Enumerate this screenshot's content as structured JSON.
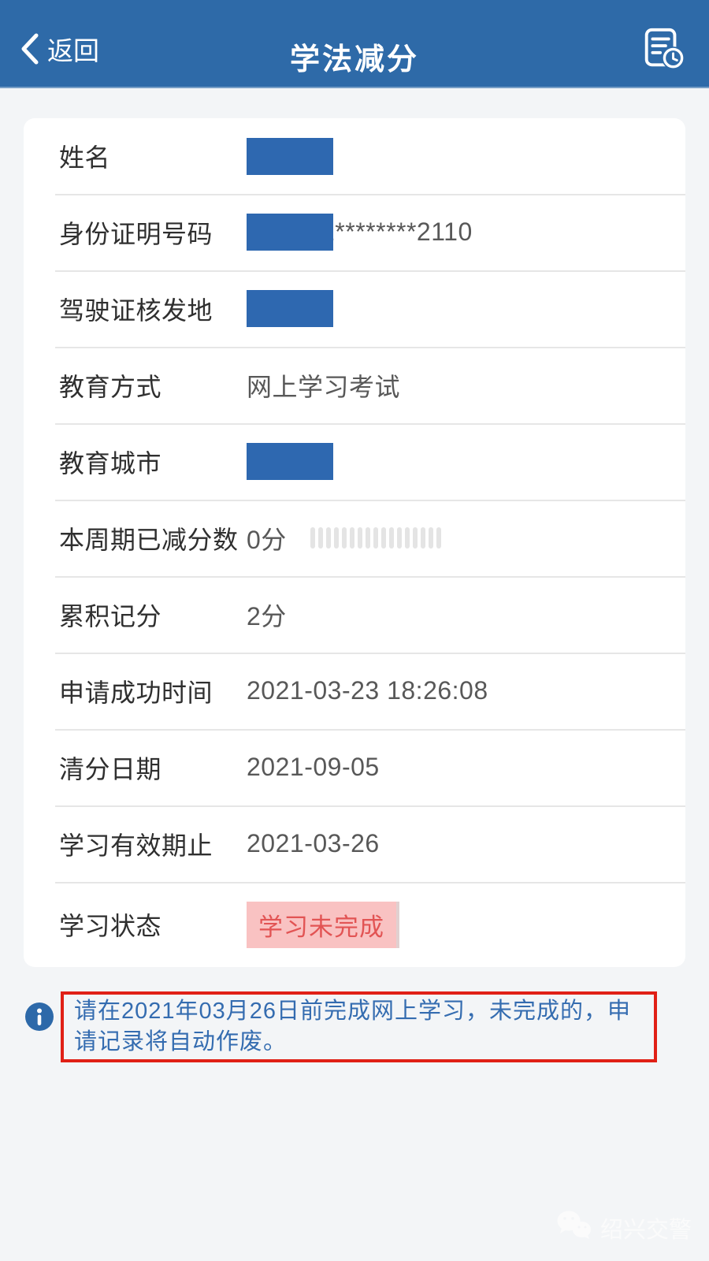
{
  "header": {
    "back_label": "返回",
    "title": "学法减分"
  },
  "fields": [
    {
      "label": "姓名",
      "value": "",
      "redacted": true
    },
    {
      "label": "身份证明号码",
      "value": "2********2110",
      "redacted": true
    },
    {
      "label": "驾驶证核发地",
      "value": "",
      "redacted": true
    },
    {
      "label": "教育方式",
      "value": "网上学习考试",
      "redacted": false
    },
    {
      "label": "教育城市",
      "value": "",
      "redacted": true
    },
    {
      "label": "本周期已减分数",
      "value": "0分",
      "redacted": false
    },
    {
      "label": "累积记分",
      "value": "2分",
      "redacted": false
    },
    {
      "label": "申请成功时间",
      "value": "2021-03-23 18:26:08",
      "redacted": false
    },
    {
      "label": "清分日期",
      "value": "2021-09-05",
      "redacted": false
    },
    {
      "label": "学习有效期止",
      "value": "2021-03-26",
      "redacted": false
    },
    {
      "label": "学习状态",
      "value": "学习未完成",
      "redacted": false,
      "status": "incomplete"
    }
  ],
  "progress": {
    "segments": 17
  },
  "notice": {
    "text": "请在2021年03月26日前完成网上学习，未完成的，申请记录将自动作废。"
  },
  "watermark": {
    "text": "绍兴交警"
  },
  "colors": {
    "header_bg": "#2e6aa8",
    "page_bg": "#f3f5f7",
    "card_bg": "#ffffff",
    "separator": "#e6e6e6",
    "label_text": "#2f2f2f",
    "value_text": "#585858",
    "redact_block": "#2e68b0",
    "dash": "#e4e4e4",
    "badge_bg": "#f9c2c2",
    "badge_text": "#e25454",
    "notice_border": "#e02016",
    "notice_text": "#346cb0",
    "info_icon": "#2d69a9",
    "watermark_text": "#fcfcfc"
  }
}
